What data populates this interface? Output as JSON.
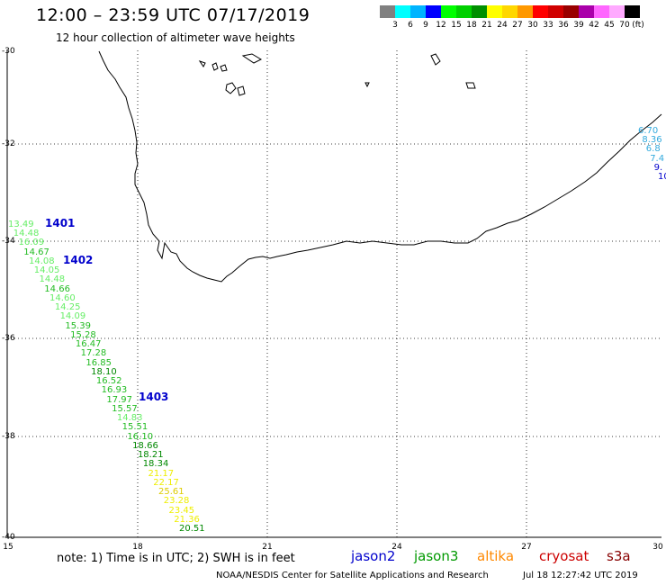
{
  "header": {
    "title": "12:00 – 23:59 UTC 07/17/2019",
    "subtitle": "12 hour collection of altimeter wave heights"
  },
  "colorbar": {
    "colors": [
      "#808080",
      "#00ffff",
      "#00b4ff",
      "#0000ff",
      "#00ff00",
      "#00d000",
      "#009000",
      "#ffff00",
      "#ffd700",
      "#ff9900",
      "#ff0000",
      "#d00000",
      "#990000",
      "#aa00aa",
      "#ff66ff",
      "#ffaaff",
      "#000000"
    ],
    "labels": [
      "3",
      "6",
      "9",
      "12",
      "15",
      "18",
      "21",
      "24",
      "27",
      "30",
      "33",
      "36",
      "39",
      "42",
      "45",
      "70"
    ],
    "unit": "(ft)"
  },
  "axes": {
    "y_ticks": [
      "-30",
      "-32",
      "-34",
      "-36",
      "-38",
      "-40"
    ],
    "x_ticks": [
      "15",
      "18",
      "21",
      "24",
      "27",
      "30"
    ]
  },
  "passes": [
    "1401",
    "1402",
    "1403"
  ],
  "west_track": [
    {
      "value": "13.49",
      "color": "#66ee66"
    },
    {
      "value": "14.48",
      "color": "#66ee66"
    },
    {
      "value": "16.09",
      "color": "#66ee66"
    },
    {
      "value": "14.67",
      "color": "#22bb22"
    },
    {
      "value": "14.08",
      "color": "#66ee66"
    },
    {
      "value": "14.05",
      "color": "#66ee66"
    },
    {
      "value": "14.48",
      "color": "#66ee66"
    },
    {
      "value": "14.66",
      "color": "#22bb22"
    },
    {
      "value": "14.60",
      "color": "#66ee66"
    },
    {
      "value": "14.25",
      "color": "#66ee66"
    },
    {
      "value": "14.09",
      "color": "#66ee66"
    },
    {
      "value": "15.39",
      "color": "#22bb22"
    },
    {
      "value": "15.28",
      "color": "#22bb22"
    },
    {
      "value": "16.47",
      "color": "#22bb22"
    },
    {
      "value": "17.28",
      "color": "#22bb22"
    },
    {
      "value": "16.85",
      "color": "#22bb22"
    },
    {
      "value": "18.10",
      "color": "#008800"
    },
    {
      "value": "16.52",
      "color": "#22bb22"
    },
    {
      "value": "16.93",
      "color": "#22bb22"
    },
    {
      "value": "17.97",
      "color": "#22bb22"
    },
    {
      "value": "15.57",
      "color": "#22bb22"
    },
    {
      "value": "14.83",
      "color": "#66ee66"
    },
    {
      "value": "15.51",
      "color": "#22bb22"
    },
    {
      "value": "16.10",
      "color": "#22bb22"
    },
    {
      "value": "18.66",
      "color": "#008800"
    },
    {
      "value": "18.21",
      "color": "#008800"
    },
    {
      "value": "18.34",
      "color": "#008800"
    },
    {
      "value": "21.17",
      "color": "#eeee00"
    },
    {
      "value": "22.17",
      "color": "#eeee00"
    },
    {
      "value": "25.61",
      "color": "#ddcc00"
    },
    {
      "value": "23.28",
      "color": "#eeee00"
    },
    {
      "value": "23.45",
      "color": "#eeee00"
    },
    {
      "value": "21.36",
      "color": "#eeee00"
    },
    {
      "value": "20.51",
      "color": "#008800"
    }
  ],
  "east_track": [
    {
      "value": "6.70",
      "color": "#33aadd"
    },
    {
      "value": "8.36",
      "color": "#33aadd"
    },
    {
      "value": "6.8",
      "color": "#33aadd"
    },
    {
      "value": "7.4",
      "color": "#33aadd"
    },
    {
      "value": "9.",
      "color": "#0000cc"
    },
    {
      "value": "10",
      "color": "#0000cc"
    }
  ],
  "note": "note:  1) Time is in UTC;  2) SWH is in feet",
  "satellites": [
    {
      "name": "jason2",
      "color": "#0000cc"
    },
    {
      "name": "jason3",
      "color": "#009900"
    },
    {
      "name": "altika",
      "color": "#ff8800"
    },
    {
      "name": "cryosat",
      "color": "#cc0000"
    },
    {
      "name": "s3a",
      "color": "#880000"
    }
  ],
  "footer": {
    "left": "NOAA/NESDIS Center for Satellite Applications and Research",
    "right": "Jul 18 12:27:42 UTC 2019"
  }
}
